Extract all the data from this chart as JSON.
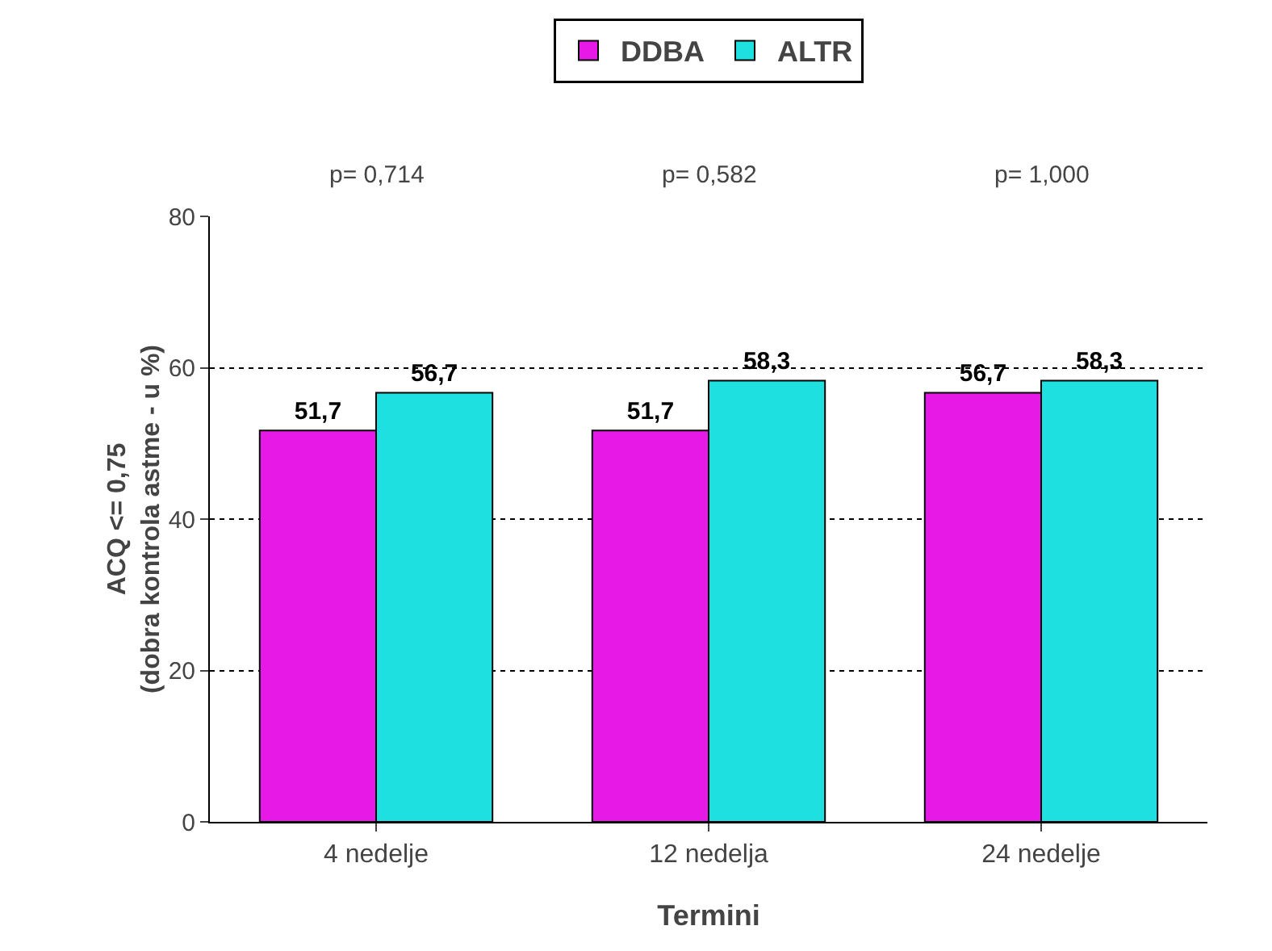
{
  "chart_data": {
    "type": "bar",
    "xlabel": "Termini",
    "ylabel": "ACQ <= 0,75\n(dobra kontrola astme - u %)",
    "categories": [
      "4 nedelje",
      "12 nedelja",
      "24 nedelje"
    ],
    "series": [
      {
        "name": "DDBA",
        "color": "#e619e6",
        "values": [
          51.7,
          51.7,
          56.7
        ],
        "value_labels": [
          "51,7",
          "51,7",
          "56,7"
        ]
      },
      {
        "name": "ALTR",
        "color": "#1fe0e0",
        "values": [
          56.7,
          58.3,
          58.3
        ],
        "value_labels": [
          "56,7",
          "58,3",
          "58,3"
        ]
      }
    ],
    "annotations": [
      "p= 0,714",
      "p= 0,582",
      "p= 1,000"
    ],
    "ylim": [
      0,
      80
    ],
    "yticks": [
      0,
      20,
      40,
      60,
      80
    ],
    "grid": "y",
    "legend": "top"
  }
}
